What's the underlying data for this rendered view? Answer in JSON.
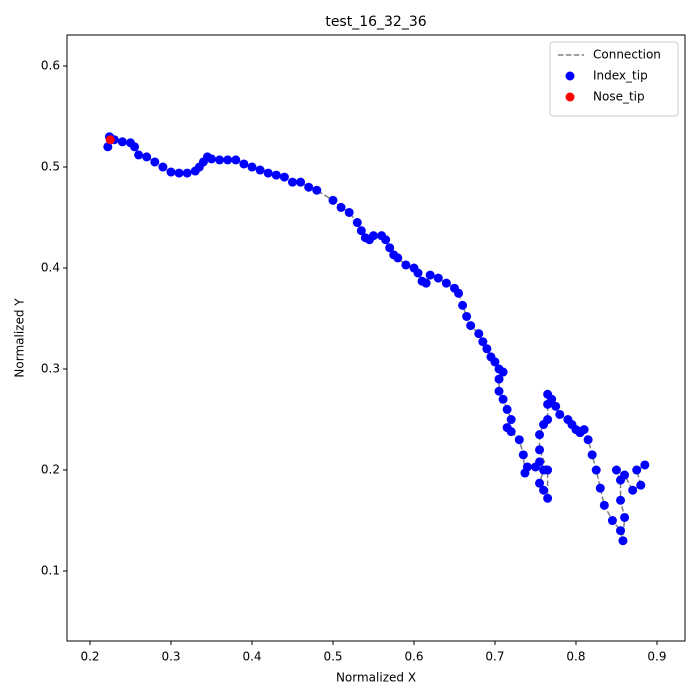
{
  "chart_data": {
    "type": "scatter",
    "title": "test_16_32_36",
    "x_label": "Normalized X",
    "y_label": "Normalized Y",
    "xlim": [
      0.1716,
      0.9346
    ],
    "ylim": [
      0.0307,
      0.6307
    ],
    "xticks": [
      0.2,
      0.3,
      0.4,
      0.5,
      0.6,
      0.7,
      0.8,
      0.9
    ],
    "yticks": [
      0.1,
      0.2,
      0.3,
      0.4,
      0.5,
      0.6
    ],
    "legend": "upper right",
    "series": [
      {
        "name": "Connection",
        "color": "#808080",
        "style": "dashed-line",
        "x": [
          0.222,
          0.224,
          0.23,
          0.24,
          0.25,
          0.255,
          0.26,
          0.27,
          0.28,
          0.29,
          0.3,
          0.31,
          0.32,
          0.33,
          0.335,
          0.34,
          0.345,
          0.35,
          0.36,
          0.37,
          0.38,
          0.39,
          0.4,
          0.41,
          0.42,
          0.43,
          0.44,
          0.45,
          0.46,
          0.47,
          0.48,
          0.5,
          0.51,
          0.52,
          0.53,
          0.535,
          0.54,
          0.545,
          0.55,
          0.56,
          0.565,
          0.57,
          0.575,
          0.58,
          0.59,
          0.6,
          0.605,
          0.61,
          0.615,
          0.62,
          0.63,
          0.64,
          0.65,
          0.655,
          0.66,
          0.665,
          0.67,
          0.68,
          0.685,
          0.69,
          0.695,
          0.7,
          0.705,
          0.71,
          0.705,
          0.705,
          0.71,
          0.715,
          0.72,
          0.715,
          0.72,
          0.73,
          0.735,
          0.737,
          0.74,
          0.75,
          0.755,
          0.76,
          0.755,
          0.76,
          0.765,
          0.765,
          0.755,
          0.755,
          0.76,
          0.765,
          0.765,
          0.765,
          0.77,
          0.775,
          0.78,
          0.79,
          0.795,
          0.8,
          0.805,
          0.81,
          0.815,
          0.82,
          0.825,
          0.83,
          0.835,
          0.845,
          0.855,
          0.858,
          0.86,
          0.855,
          0.855,
          0.85,
          0.86,
          0.87,
          0.88,
          0.875,
          0.885
        ],
        "y": [
          0.52,
          0.53,
          0.527,
          0.525,
          0.524,
          0.52,
          0.512,
          0.51,
          0.505,
          0.5,
          0.495,
          0.494,
          0.494,
          0.496,
          0.5,
          0.505,
          0.51,
          0.508,
          0.507,
          0.507,
          0.507,
          0.503,
          0.5,
          0.497,
          0.494,
          0.492,
          0.49,
          0.485,
          0.485,
          0.48,
          0.477,
          0.467,
          0.46,
          0.455,
          0.445,
          0.437,
          0.43,
          0.428,
          0.432,
          0.432,
          0.428,
          0.42,
          0.413,
          0.41,
          0.403,
          0.4,
          0.395,
          0.387,
          0.385,
          0.393,
          0.39,
          0.385,
          0.38,
          0.375,
          0.363,
          0.352,
          0.343,
          0.335,
          0.327,
          0.32,
          0.312,
          0.307,
          0.3,
          0.297,
          0.29,
          0.278,
          0.27,
          0.26,
          0.25,
          0.242,
          0.238,
          0.23,
          0.215,
          0.197,
          0.203,
          0.203,
          0.208,
          0.2,
          0.187,
          0.18,
          0.172,
          0.2,
          0.22,
          0.235,
          0.245,
          0.25,
          0.265,
          0.275,
          0.27,
          0.263,
          0.255,
          0.25,
          0.245,
          0.24,
          0.237,
          0.24,
          0.23,
          0.215,
          0.2,
          0.182,
          0.165,
          0.15,
          0.14,
          0.13,
          0.153,
          0.17,
          0.19,
          0.2,
          0.195,
          0.18,
          0.185,
          0.2,
          0.205
        ]
      },
      {
        "name": "Index_tip",
        "color": "#0000ff",
        "style": "scatter",
        "x": [
          0.222,
          0.224,
          0.23,
          0.24,
          0.25,
          0.255,
          0.26,
          0.27,
          0.28,
          0.29,
          0.3,
          0.31,
          0.32,
          0.33,
          0.335,
          0.34,
          0.345,
          0.35,
          0.36,
          0.37,
          0.38,
          0.39,
          0.4,
          0.41,
          0.42,
          0.43,
          0.44,
          0.45,
          0.46,
          0.47,
          0.48,
          0.5,
          0.51,
          0.52,
          0.53,
          0.535,
          0.54,
          0.545,
          0.55,
          0.56,
          0.565,
          0.57,
          0.575,
          0.58,
          0.59,
          0.6,
          0.605,
          0.61,
          0.615,
          0.62,
          0.63,
          0.64,
          0.65,
          0.655,
          0.66,
          0.665,
          0.67,
          0.68,
          0.685,
          0.69,
          0.695,
          0.7,
          0.705,
          0.71,
          0.705,
          0.705,
          0.71,
          0.715,
          0.72,
          0.715,
          0.72,
          0.73,
          0.735,
          0.737,
          0.74,
          0.75,
          0.755,
          0.76,
          0.755,
          0.76,
          0.765,
          0.765,
          0.755,
          0.755,
          0.76,
          0.765,
          0.765,
          0.765,
          0.77,
          0.775,
          0.78,
          0.79,
          0.795,
          0.8,
          0.805,
          0.81,
          0.815,
          0.82,
          0.825,
          0.83,
          0.835,
          0.845,
          0.855,
          0.858,
          0.86,
          0.855,
          0.855,
          0.85,
          0.86,
          0.87,
          0.88,
          0.875,
          0.885
        ],
        "y": [
          0.52,
          0.53,
          0.527,
          0.525,
          0.524,
          0.52,
          0.512,
          0.51,
          0.505,
          0.5,
          0.495,
          0.494,
          0.494,
          0.496,
          0.5,
          0.505,
          0.51,
          0.508,
          0.507,
          0.507,
          0.507,
          0.503,
          0.5,
          0.497,
          0.494,
          0.492,
          0.49,
          0.485,
          0.485,
          0.48,
          0.477,
          0.467,
          0.46,
          0.455,
          0.445,
          0.437,
          0.43,
          0.428,
          0.432,
          0.432,
          0.428,
          0.42,
          0.413,
          0.41,
          0.403,
          0.4,
          0.395,
          0.387,
          0.385,
          0.393,
          0.39,
          0.385,
          0.38,
          0.375,
          0.363,
          0.352,
          0.343,
          0.335,
          0.327,
          0.32,
          0.312,
          0.307,
          0.3,
          0.297,
          0.29,
          0.278,
          0.27,
          0.26,
          0.25,
          0.242,
          0.238,
          0.23,
          0.215,
          0.197,
          0.203,
          0.203,
          0.208,
          0.2,
          0.187,
          0.18,
          0.172,
          0.2,
          0.22,
          0.235,
          0.245,
          0.25,
          0.265,
          0.275,
          0.27,
          0.263,
          0.255,
          0.25,
          0.245,
          0.24,
          0.237,
          0.24,
          0.23,
          0.215,
          0.2,
          0.182,
          0.165,
          0.15,
          0.14,
          0.13,
          0.153,
          0.17,
          0.19,
          0.2,
          0.195,
          0.18,
          0.185,
          0.2,
          0.205
        ]
      },
      {
        "name": "Nose_tip",
        "color": "#ff0000",
        "style": "scatter",
        "x": [
          0.225
        ],
        "y": [
          0.527
        ]
      }
    ]
  }
}
